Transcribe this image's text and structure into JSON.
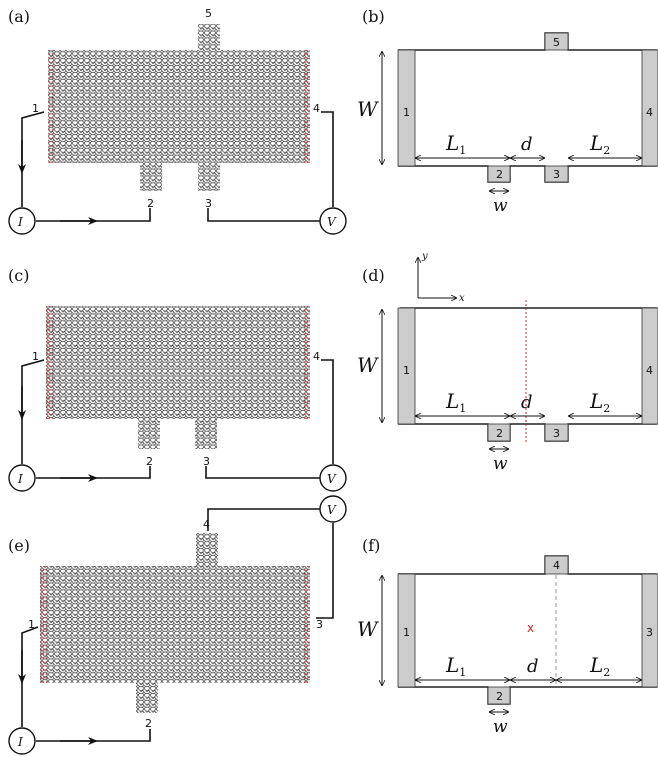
{
  "panels": {
    "a": "(a)",
    "b": "(b)",
    "c": "(c)",
    "d": "(d)",
    "e": "(e)",
    "f": "(f)"
  },
  "sources": {
    "current": "I",
    "voltage": "V"
  },
  "symbols": {
    "W": "W",
    "L": "L",
    "sub1": "1",
    "sub2": "2",
    "d": "d",
    "w": "w",
    "x": "x",
    "y": "y",
    "cross": "x"
  },
  "terminals_abcd": [
    "1",
    "2",
    "3",
    "4",
    "5"
  ],
  "terminals_ef": [
    "1",
    "2",
    "3",
    "4"
  ],
  "colors": {
    "lattice": "#3a3a3a",
    "edge_red": "#cc3333",
    "contact": "#cccccc",
    "marker": "#e02020"
  }
}
